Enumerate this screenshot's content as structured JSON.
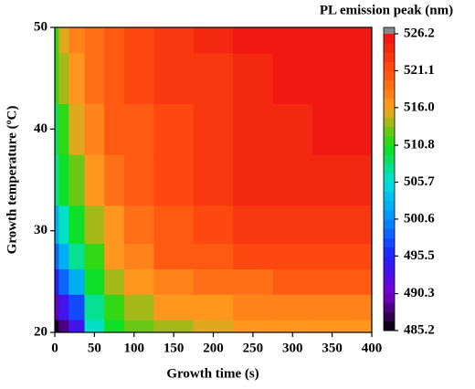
{
  "chart_data": {
    "type": "contour",
    "colorbar_title": "PL emission peak (nm)",
    "xlabel": "Growth time (s)",
    "ylabel": "Growth temperature (ºC)",
    "x": [
      0,
      10,
      25,
      50,
      75,
      100,
      150,
      200,
      250,
      300,
      350,
      400
    ],
    "y": [
      20,
      22.5,
      25,
      27.5,
      30,
      35,
      40,
      45,
      50
    ],
    "z": [
      [
        486,
        488,
        493,
        506,
        510,
        512.5,
        514,
        515,
        516,
        516.5,
        517,
        517
      ],
      [
        490,
        494,
        498,
        508,
        512,
        514,
        516,
        517,
        517.5,
        518,
        518,
        518.5
      ],
      [
        495,
        499,
        503,
        510,
        514,
        516,
        518,
        519,
        519.5,
        520,
        520,
        520.5
      ],
      [
        499,
        503,
        507,
        512,
        516,
        518,
        520,
        521,
        521.5,
        522,
        522,
        522
      ],
      [
        503,
        506,
        510,
        514,
        517,
        519,
        521,
        522,
        523,
        523,
        523.5,
        523.5
      ],
      [
        507,
        510,
        513,
        517,
        519,
        520.5,
        522,
        523,
        524,
        524,
        524.5,
        524.5
      ],
      [
        509,
        512,
        515,
        518,
        520,
        521,
        522,
        523.5,
        524,
        524.5,
        525,
        525
      ],
      [
        511,
        514,
        517,
        519,
        520.5,
        521.5,
        522.5,
        523.5,
        524.5,
        525,
        525.5,
        525.5
      ],
      [
        512,
        515,
        518,
        519.5,
        520.5,
        521.5,
        522.5,
        524,
        525,
        525.5,
        526,
        526
      ]
    ],
    "xlim": [
      0,
      400
    ],
    "xticks": [
      0,
      50,
      100,
      150,
      200,
      250,
      300,
      350,
      400
    ],
    "ylim": [
      20,
      50
    ],
    "yticks": [
      20,
      30,
      40,
      50
    ],
    "clim": [
      485.2,
      526.2
    ],
    "cticks": [
      485.2,
      490.3,
      495.5,
      500.6,
      505.7,
      510.8,
      {
        "value": 516,
        "label": "516.0"
      },
      521.1,
      526.2
    ],
    "colors": [
      "#000000",
      "#7a00d0",
      "#2020ff",
      "#0090ff",
      "#00e0e0",
      "#10e010",
      "#ffa020",
      "#ff5010",
      "#ee1010"
    ],
    "over_color": "#888888"
  }
}
